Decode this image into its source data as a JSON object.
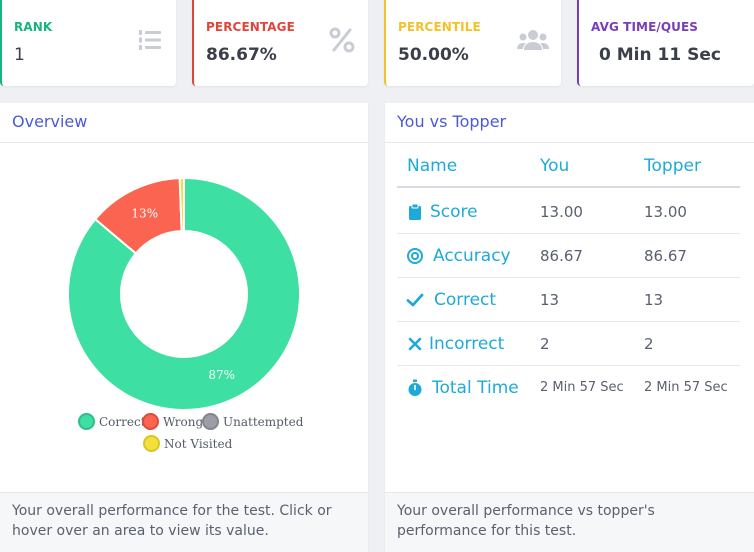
{
  "stats": [
    {
      "label": "RANK",
      "value": "1",
      "color": "#19b37f",
      "icon": "list-ordered-icon"
    },
    {
      "label": "PERCENTAGE",
      "value": "86.67%",
      "color": "#e2463a",
      "icon": "percent-icon"
    },
    {
      "label": "PERCENTILE",
      "value": "50.00%",
      "color": "#f3c12a",
      "icon": "users-icon"
    },
    {
      "label": "AVG TIME/QUES",
      "value": "0 Min 11 Sec",
      "color": "#7a3db8",
      "icon": "none"
    }
  ],
  "overview": {
    "title": "Overview",
    "footer": "Your overall performance for the test. Click or hover over an area to view its value."
  },
  "chart_data": {
    "type": "pie",
    "donut": true,
    "slices": [
      {
        "label": "Correct",
        "value": 86.67,
        "display": "87%",
        "color": "#3ddfa2"
      },
      {
        "label": "Wrong",
        "value": 13.33,
        "display": "13%",
        "color": "#fb6450"
      },
      {
        "label": "Unattempted",
        "value": 0,
        "display": "",
        "color": "#9d9da8"
      },
      {
        "label": "Not Visited",
        "value": 0.6,
        "display": "",
        "color": "#f2e03c"
      }
    ],
    "legend": [
      "Correct",
      "Wrong",
      "Unattempted",
      "Not Visited"
    ],
    "legend_position": "bottom"
  },
  "compare": {
    "title": "You vs Topper",
    "headers": {
      "name": "Name",
      "you": "You",
      "topper": "Topper"
    },
    "rows": [
      {
        "name": "Score",
        "icon": "clipboard-icon",
        "you": "13.00",
        "topper": "13.00"
      },
      {
        "name": "Accuracy",
        "icon": "target-icon",
        "you": "86.67",
        "topper": "86.67"
      },
      {
        "name": "Correct",
        "icon": "check-icon",
        "you": "13",
        "topper": "13"
      },
      {
        "name": "Incorrect",
        "icon": "cross-icon",
        "you": "2",
        "topper": "2"
      },
      {
        "name": "Total Time",
        "icon": "stopwatch-icon",
        "you": "2 Min 57 Sec",
        "topper": "2 Min 57 Sec"
      }
    ],
    "footer": "Your overall performance vs topper's performance for this test.",
    "accent": "#1eaad9"
  }
}
